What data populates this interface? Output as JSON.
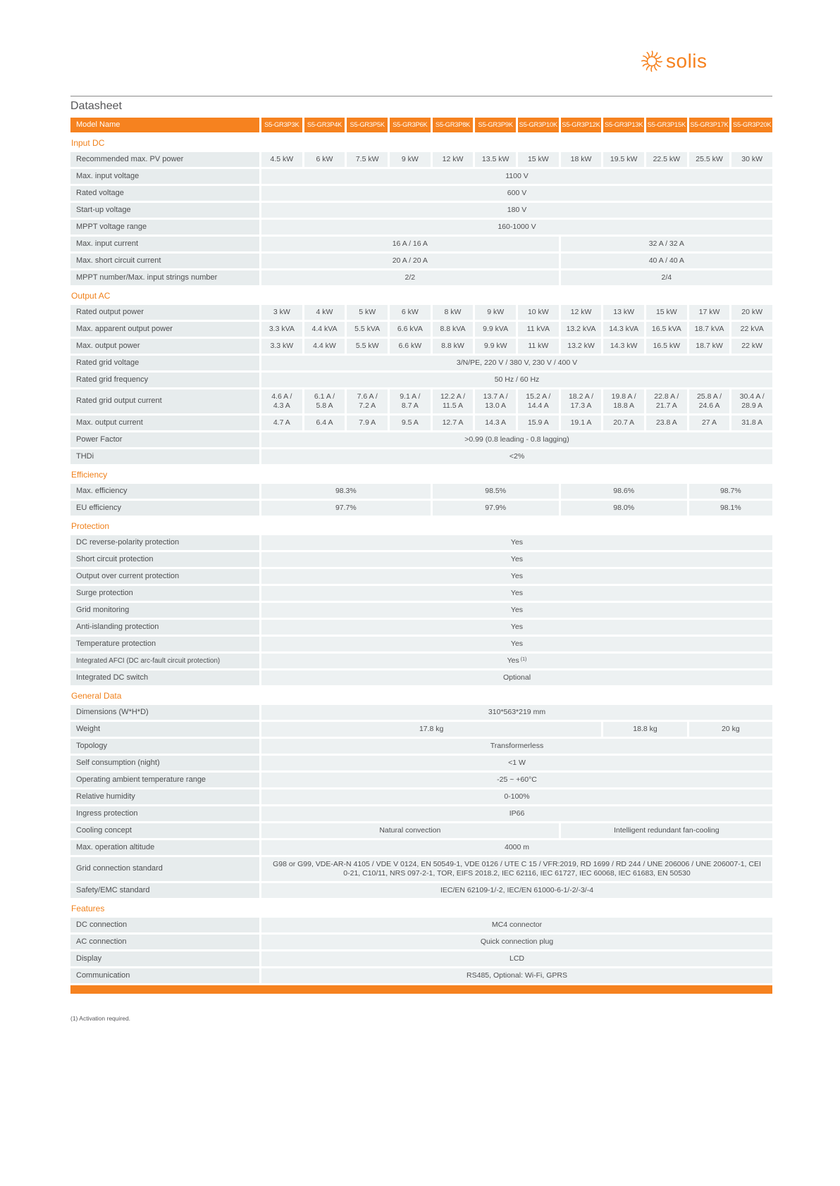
{
  "brand": {
    "logo_text": "solis"
  },
  "page": {
    "title": "Datasheet",
    "footnote": "(1) Activation required."
  },
  "accent_color": "#f6821f",
  "table": {
    "header_label": "Model Name",
    "models": [
      "S5-GR3P3K",
      "S5-GR3P4K",
      "S5-GR3P5K",
      "S5-GR3P6K",
      "S5-GR3P8K",
      "S5-GR3P9K",
      "S5-GR3P10K",
      "S5-GR3P12K",
      "S5-GR3P13K",
      "S5-GR3P15K",
      "S5-GR3P17K",
      "S5-GR3P20K"
    ],
    "sections": [
      {
        "title": "Input DC",
        "rows": [
          {
            "label": "Recommended max. PV power",
            "cells": [
              {
                "text": "4.5 kW"
              },
              {
                "text": "6 kW"
              },
              {
                "text": "7.5 kW"
              },
              {
                "text": "9 kW"
              },
              {
                "text": "12 kW"
              },
              {
                "text": "13.5 kW"
              },
              {
                "text": "15 kW"
              },
              {
                "text": "18 kW"
              },
              {
                "text": "19.5 kW"
              },
              {
                "text": "22.5 kW"
              },
              {
                "text": "25.5 kW"
              },
              {
                "text": "30 kW"
              }
            ]
          },
          {
            "label": "Max. input voltage",
            "cells": [
              {
                "text": "1100 V",
                "span": 12
              }
            ]
          },
          {
            "label": "Rated voltage",
            "cells": [
              {
                "text": "600 V",
                "span": 12
              }
            ]
          },
          {
            "label": "Start-up voltage",
            "cells": [
              {
                "text": "180 V",
                "span": 12
              }
            ]
          },
          {
            "label": "MPPT voltage range",
            "cells": [
              {
                "text": "160-1000 V",
                "span": 12
              }
            ]
          },
          {
            "label": "Max. input current",
            "cells": [
              {
                "text": "16 A / 16 A",
                "span": 7
              },
              {
                "text": "32 A / 32 A",
                "span": 5
              }
            ]
          },
          {
            "label": "Max. short circuit current",
            "cells": [
              {
                "text": "20 A / 20 A",
                "span": 7
              },
              {
                "text": "40 A / 40 A",
                "span": 5
              }
            ]
          },
          {
            "label": "MPPT number/Max. input strings number",
            "cells": [
              {
                "text": "2/2",
                "span": 7
              },
              {
                "text": "2/4",
                "span": 5
              }
            ]
          }
        ]
      },
      {
        "title": "Output AC",
        "rows": [
          {
            "label": "Rated output power",
            "cells": [
              {
                "text": "3 kW"
              },
              {
                "text": "4 kW"
              },
              {
                "text": "5 kW"
              },
              {
                "text": "6 kW"
              },
              {
                "text": "8 kW"
              },
              {
                "text": "9 kW"
              },
              {
                "text": "10 kW"
              },
              {
                "text": "12 kW"
              },
              {
                "text": "13 kW"
              },
              {
                "text": "15 kW"
              },
              {
                "text": "17 kW"
              },
              {
                "text": "20 kW"
              }
            ]
          },
          {
            "label": "Max. apparent output power",
            "cells": [
              {
                "text": "3.3 kVA"
              },
              {
                "text": "4.4 kVA"
              },
              {
                "text": "5.5 kVA"
              },
              {
                "text": "6.6 kVA"
              },
              {
                "text": "8.8 kVA"
              },
              {
                "text": "9.9 kVA"
              },
              {
                "text": "11 kVA"
              },
              {
                "text": "13.2 kVA"
              },
              {
                "text": "14.3 kVA"
              },
              {
                "text": "16.5 kVA"
              },
              {
                "text": "18.7 kVA"
              },
              {
                "text": "22 kVA"
              }
            ]
          },
          {
            "label": "Max. output power",
            "cells": [
              {
                "text": "3.3 kW"
              },
              {
                "text": "4.4 kW"
              },
              {
                "text": "5.5 kW"
              },
              {
                "text": "6.6 kW"
              },
              {
                "text": "8.8 kW"
              },
              {
                "text": "9.9 kW"
              },
              {
                "text": "11 kW"
              },
              {
                "text": "13.2 kW"
              },
              {
                "text": "14.3 kW"
              },
              {
                "text": "16.5 kW"
              },
              {
                "text": "18.7 kW"
              },
              {
                "text": "22 kW"
              }
            ]
          },
          {
            "label": "Rated grid voltage",
            "cells": [
              {
                "text": "3/N/PE, 220 V / 380 V, 230 V / 400 V",
                "span": 12
              }
            ]
          },
          {
            "label": "Rated grid frequency",
            "cells": [
              {
                "text": "50 Hz / 60 Hz",
                "span": 12
              }
            ]
          },
          {
            "label": "Rated grid output current",
            "tall": true,
            "cells": [
              {
                "text": "4.6 A /\n4.3 A"
              },
              {
                "text": "6.1 A /\n5.8 A"
              },
              {
                "text": "7.6 A /\n7.2 A"
              },
              {
                "text": "9.1 A /\n8.7 A"
              },
              {
                "text": "12.2 A /\n11.5 A"
              },
              {
                "text": "13.7 A /\n13.0 A"
              },
              {
                "text": "15.2 A /\n14.4 A"
              },
              {
                "text": "18.2 A /\n17.3 A"
              },
              {
                "text": "19.8 A /\n18.8 A"
              },
              {
                "text": "22.8 A /\n21.7 A"
              },
              {
                "text": "25.8 A /\n24.6 A"
              },
              {
                "text": "30.4 A /\n28.9 A"
              }
            ]
          },
          {
            "label": "Max. output current",
            "cells": [
              {
                "text": "4.7 A"
              },
              {
                "text": "6.4 A"
              },
              {
                "text": "7.9 A"
              },
              {
                "text": "9.5 A"
              },
              {
                "text": "12.7 A"
              },
              {
                "text": "14.3 A"
              },
              {
                "text": "15.9 A"
              },
              {
                "text": "19.1 A"
              },
              {
                "text": "20.7 A"
              },
              {
                "text": "23.8 A"
              },
              {
                "text": "27 A"
              },
              {
                "text": "31.8 A"
              }
            ]
          },
          {
            "label": "Power Factor",
            "cells": [
              {
                "text": ">0.99 (0.8 leading - 0.8 lagging)",
                "span": 12
              }
            ]
          },
          {
            "label": "THDi",
            "cells": [
              {
                "text": "<2%",
                "span": 12
              }
            ]
          }
        ]
      },
      {
        "title": "Efficiency",
        "rows": [
          {
            "label": "Max. efficiency",
            "cells": [
              {
                "text": "98.3%",
                "span": 4
              },
              {
                "text": "98.5%",
                "span": 3
              },
              {
                "text": "98.6%",
                "span": 3
              },
              {
                "text": "98.7%",
                "span": 2
              }
            ]
          },
          {
            "label": "EU efficiency",
            "cells": [
              {
                "text": "97.7%",
                "span": 4
              },
              {
                "text": "97.9%",
                "span": 3
              },
              {
                "text": "98.0%",
                "span": 3
              },
              {
                "text": "98.1%",
                "span": 2
              }
            ]
          }
        ]
      },
      {
        "title": "Protection",
        "rows": [
          {
            "label": "DC reverse-polarity protection",
            "cells": [
              {
                "text": "Yes",
                "span": 12
              }
            ]
          },
          {
            "label": "Short circuit protection",
            "cells": [
              {
                "text": "Yes",
                "span": 12
              }
            ]
          },
          {
            "label": "Output over current protection",
            "cells": [
              {
                "text": "Yes",
                "span": 12
              }
            ]
          },
          {
            "label": "Surge protection",
            "cells": [
              {
                "text": "Yes",
                "span": 12
              }
            ]
          },
          {
            "label": "Grid monitoring",
            "cells": [
              {
                "text": "Yes",
                "span": 12
              }
            ]
          },
          {
            "label": "Anti-islanding protection",
            "cells": [
              {
                "text": "Yes",
                "span": 12
              }
            ]
          },
          {
            "label": "Temperature protection",
            "cells": [
              {
                "text": "Yes",
                "span": 12
              }
            ]
          },
          {
            "label": "Integrated AFCI (DC arc-fault circuit protection)",
            "small_label": true,
            "cells": [
              {
                "text": "Yes",
                "sup": "(1)",
                "span": 12
              }
            ]
          },
          {
            "label": "Integrated DC switch",
            "cells": [
              {
                "text": "Optional",
                "span": 12
              }
            ]
          }
        ]
      },
      {
        "title": "General Data",
        "rows": [
          {
            "label": "Dimensions (W*H*D)",
            "cells": [
              {
                "text": "310*563*219 mm",
                "span": 12
              }
            ]
          },
          {
            "label": "Weight",
            "cells": [
              {
                "text": "17.8 kg",
                "span": 8
              },
              {
                "text": "18.8 kg",
                "span": 2
              },
              {
                "text": "20 kg",
                "span": 2
              }
            ]
          },
          {
            "label": "Topology",
            "cells": [
              {
                "text": "Transformerless",
                "span": 12
              }
            ]
          },
          {
            "label": "Self consumption (night)",
            "cells": [
              {
                "text": "<1 W",
                "span": 12
              }
            ]
          },
          {
            "label": "Operating ambient temperature range",
            "cells": [
              {
                "text": "-25 ~ +60°C",
                "span": 12
              }
            ]
          },
          {
            "label": "Relative humidity",
            "cells": [
              {
                "text": "0-100%",
                "span": 12
              }
            ]
          },
          {
            "label": "Ingress protection",
            "cells": [
              {
                "text": "IP66",
                "span": 12
              }
            ]
          },
          {
            "label": "Cooling concept",
            "cells": [
              {
                "text": "Natural convection",
                "span": 7
              },
              {
                "text": "Intelligent redundant fan-cooling",
                "span": 5
              }
            ]
          },
          {
            "label": "Max. operation altitude",
            "cells": [
              {
                "text": "4000 m",
                "span": 12
              }
            ]
          },
          {
            "label": "Grid connection standard",
            "tall": true,
            "long_text": true,
            "cells": [
              {
                "text": "G98 or G99, VDE-AR-N 4105 / VDE V 0124, EN 50549-1, VDE 0126 / UTE C 15 / VFR:2019, RD 1699 / RD 244 / UNE 206006 / UNE 206007-1, CEI 0-21, C10/11, NRS 097-2-1, TOR, EIFS 2018.2, IEC 62116, IEC 61727, IEC 60068, IEC 61683, EN 50530",
                "span": 12
              }
            ]
          },
          {
            "label": "Safety/EMC standard",
            "cells": [
              {
                "text": "IEC/EN 62109-1/-2, IEC/EN 61000-6-1/-2/-3/-4",
                "span": 12
              }
            ]
          }
        ]
      },
      {
        "title": "Features",
        "rows": [
          {
            "label": "DC connection",
            "cells": [
              {
                "text": "MC4 connector",
                "span": 12
              }
            ]
          },
          {
            "label": "AC connection",
            "cells": [
              {
                "text": "Quick connection plug",
                "span": 12
              }
            ]
          },
          {
            "label": "Display",
            "cells": [
              {
                "text": "LCD",
                "span": 12
              }
            ]
          },
          {
            "label": "Communication",
            "cells": [
              {
                "text": "RS485, Optional: Wi-Fi, GPRS",
                "span": 12
              }
            ]
          }
        ]
      }
    ]
  }
}
